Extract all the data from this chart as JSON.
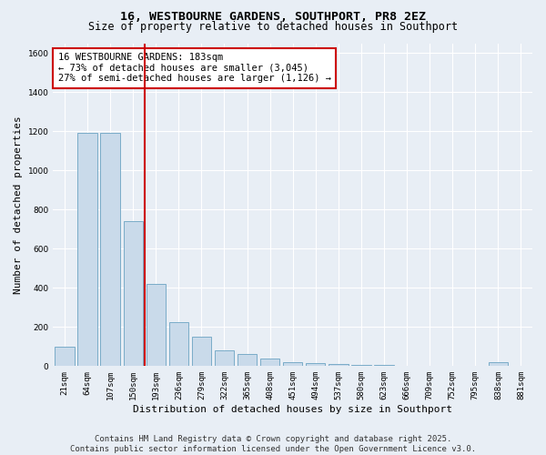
{
  "title_line1": "16, WESTBOURNE GARDENS, SOUTHPORT, PR8 2EZ",
  "title_line2": "Size of property relative to detached houses in Southport",
  "xlabel": "Distribution of detached houses by size in Southport",
  "ylabel": "Number of detached properties",
  "categories": [
    "21sqm",
    "64sqm",
    "107sqm",
    "150sqm",
    "193sqm",
    "236sqm",
    "279sqm",
    "322sqm",
    "365sqm",
    "408sqm",
    "451sqm",
    "494sqm",
    "537sqm",
    "580sqm",
    "623sqm",
    "666sqm",
    "709sqm",
    "752sqm",
    "795sqm",
    "838sqm",
    "881sqm"
  ],
  "values": [
    100,
    1190,
    1190,
    740,
    420,
    225,
    150,
    80,
    60,
    40,
    20,
    15,
    12,
    8,
    5,
    3,
    2,
    1,
    1,
    20,
    1
  ],
  "bar_color": "#c9daea",
  "bar_edge_color": "#7aacc8",
  "vline_color": "#cc0000",
  "vline_x": 3.5,
  "annotation_text": "16 WESTBOURNE GARDENS: 183sqm\n← 73% of detached houses are smaller (3,045)\n27% of semi-detached houses are larger (1,126) →",
  "annotation_box_edge_color": "#cc0000",
  "annotation_box_face_color": "#ffffff",
  "ylim": [
    0,
    1650
  ],
  "yticks": [
    0,
    200,
    400,
    600,
    800,
    1000,
    1200,
    1400,
    1600
  ],
  "bg_color": "#e8eef5",
  "plot_bg_color": "#e8eef5",
  "footer_text": "Contains HM Land Registry data © Crown copyright and database right 2025.\nContains public sector information licensed under the Open Government Licence v3.0.",
  "title_fontsize": 9.5,
  "subtitle_fontsize": 8.5,
  "axis_label_fontsize": 8,
  "tick_fontsize": 6.5,
  "annotation_fontsize": 7.5,
  "footer_fontsize": 6.5
}
